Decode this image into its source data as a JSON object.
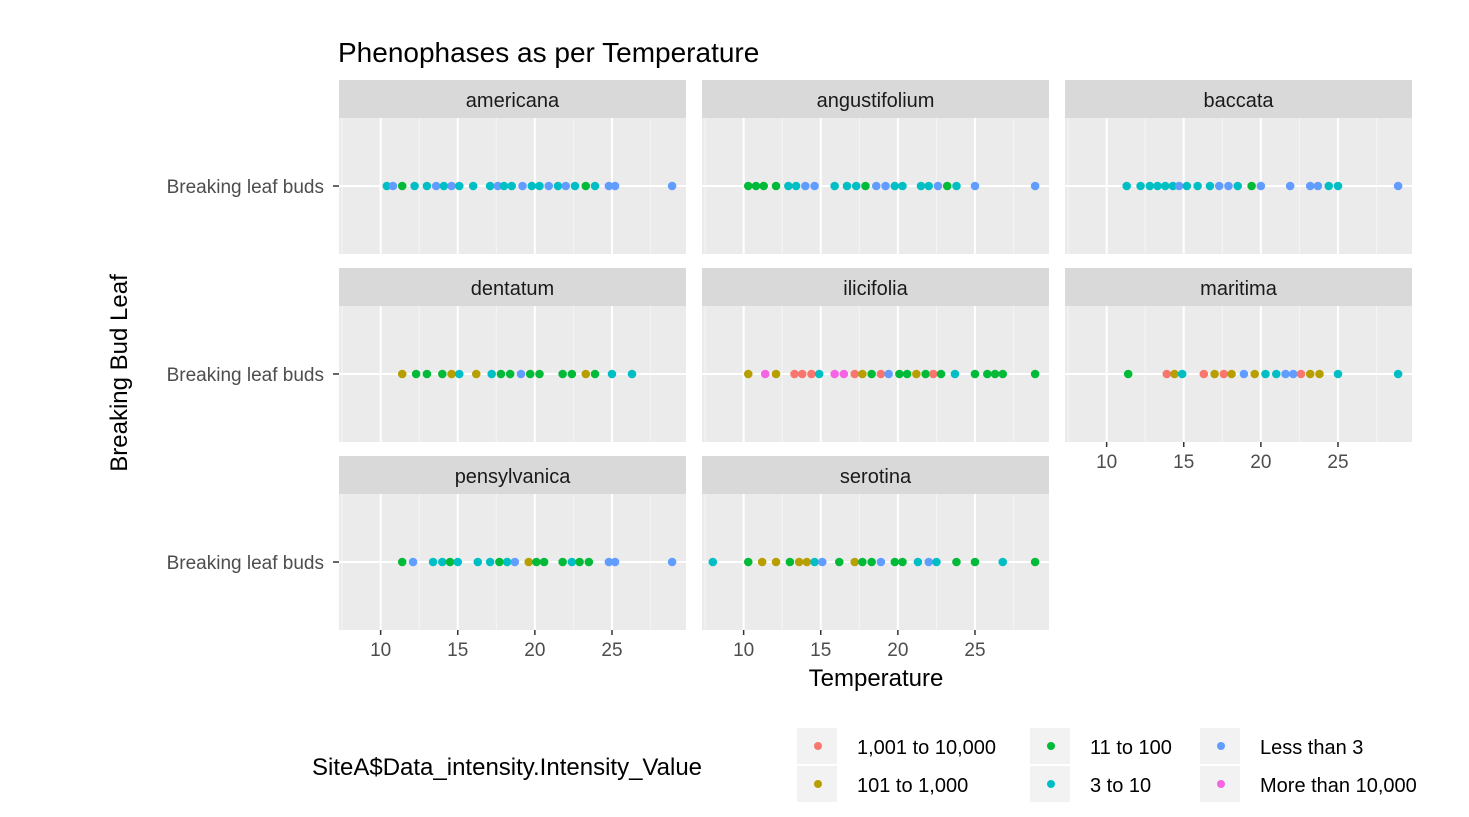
{
  "chart_data": {
    "type": "scatter",
    "title": "Phenophases as per Temperature",
    "xlabel": "Temperature",
    "ylabel": "Breaking Bud Leaf",
    "y_category": "Breaking leaf buds",
    "xlim": [
      7.3,
      29.8
    ],
    "x_ticks": [
      10,
      15,
      20,
      25
    ],
    "grid": true,
    "legend": {
      "title": "SiteA$Data_intensity.Intensity_Value",
      "position": "bottom",
      "entries": [
        {
          "label": "1,001 to 10,000",
          "color": "#F8766D"
        },
        {
          "label": "101 to 1,000",
          "color": "#B79F00"
        },
        {
          "label": "11 to 100",
          "color": "#00BA38"
        },
        {
          "label": "3 to 10",
          "color": "#00BFC4"
        },
        {
          "label": "Less than 3",
          "color": "#619CFF"
        },
        {
          "label": "More than 10,000",
          "color": "#F564E3"
        }
      ]
    },
    "panels": [
      {
        "name": "americana",
        "points": [
          {
            "x": 10.4,
            "c": "3 to 10"
          },
          {
            "x": 10.8,
            "c": "Less than 3"
          },
          {
            "x": 11.4,
            "c": "11 to 100"
          },
          {
            "x": 12.2,
            "c": "3 to 10"
          },
          {
            "x": 13.0,
            "c": "3 to 10"
          },
          {
            "x": 13.6,
            "c": "Less than 3"
          },
          {
            "x": 14.1,
            "c": "3 to 10"
          },
          {
            "x": 14.6,
            "c": "Less than 3"
          },
          {
            "x": 15.1,
            "c": "3 to 10"
          },
          {
            "x": 16.0,
            "c": "3 to 10"
          },
          {
            "x": 17.1,
            "c": "3 to 10"
          },
          {
            "x": 17.6,
            "c": "Less than 3"
          },
          {
            "x": 18.0,
            "c": "3 to 10"
          },
          {
            "x": 18.5,
            "c": "3 to 10"
          },
          {
            "x": 19.2,
            "c": "Less than 3"
          },
          {
            "x": 19.8,
            "c": "3 to 10"
          },
          {
            "x": 20.3,
            "c": "3 to 10"
          },
          {
            "x": 20.9,
            "c": "Less than 3"
          },
          {
            "x": 21.5,
            "c": "3 to 10"
          },
          {
            "x": 22.0,
            "c": "Less than 3"
          },
          {
            "x": 22.6,
            "c": "3 to 10"
          },
          {
            "x": 23.3,
            "c": "11 to 100"
          },
          {
            "x": 23.9,
            "c": "3 to 10"
          },
          {
            "x": 24.8,
            "c": "Less than 3"
          },
          {
            "x": 25.2,
            "c": "Less than 3"
          },
          {
            "x": 28.9,
            "c": "Less than 3"
          }
        ]
      },
      {
        "name": "angustifolium",
        "points": [
          {
            "x": 10.3,
            "c": "11 to 100"
          },
          {
            "x": 10.8,
            "c": "11 to 100"
          },
          {
            "x": 11.3,
            "c": "11 to 100"
          },
          {
            "x": 12.1,
            "c": "11 to 100"
          },
          {
            "x": 12.9,
            "c": "3 to 10"
          },
          {
            "x": 13.4,
            "c": "3 to 10"
          },
          {
            "x": 14.0,
            "c": "Less than 3"
          },
          {
            "x": 14.6,
            "c": "Less than 3"
          },
          {
            "x": 15.9,
            "c": "3 to 10"
          },
          {
            "x": 16.7,
            "c": "3 to 10"
          },
          {
            "x": 17.3,
            "c": "3 to 10"
          },
          {
            "x": 17.9,
            "c": "11 to 100"
          },
          {
            "x": 18.6,
            "c": "Less than 3"
          },
          {
            "x": 19.2,
            "c": "Less than 3"
          },
          {
            "x": 19.8,
            "c": "3 to 10"
          },
          {
            "x": 20.3,
            "c": "3 to 10"
          },
          {
            "x": 21.5,
            "c": "3 to 10"
          },
          {
            "x": 22.0,
            "c": "3 to 10"
          },
          {
            "x": 22.6,
            "c": "Less than 3"
          },
          {
            "x": 23.2,
            "c": "11 to 100"
          },
          {
            "x": 23.8,
            "c": "3 to 10"
          },
          {
            "x": 25.0,
            "c": "Less than 3"
          },
          {
            "x": 28.9,
            "c": "Less than 3"
          }
        ]
      },
      {
        "name": "baccata",
        "points": [
          {
            "x": 11.3,
            "c": "3 to 10"
          },
          {
            "x": 12.2,
            "c": "3 to 10"
          },
          {
            "x": 12.8,
            "c": "3 to 10"
          },
          {
            "x": 13.3,
            "c": "3 to 10"
          },
          {
            "x": 13.8,
            "c": "3 to 10"
          },
          {
            "x": 14.3,
            "c": "3 to 10"
          },
          {
            "x": 14.7,
            "c": "Less than 3"
          },
          {
            "x": 15.2,
            "c": "3 to 10"
          },
          {
            "x": 15.9,
            "c": "3 to 10"
          },
          {
            "x": 16.7,
            "c": "3 to 10"
          },
          {
            "x": 17.3,
            "c": "Less than 3"
          },
          {
            "x": 17.9,
            "c": "Less than 3"
          },
          {
            "x": 18.5,
            "c": "3 to 10"
          },
          {
            "x": 19.4,
            "c": "11 to 100"
          },
          {
            "x": 20.0,
            "c": "Less than 3"
          },
          {
            "x": 21.9,
            "c": "Less than 3"
          },
          {
            "x": 23.2,
            "c": "Less than 3"
          },
          {
            "x": 23.7,
            "c": "Less than 3"
          },
          {
            "x": 24.4,
            "c": "3 to 10"
          },
          {
            "x": 25.0,
            "c": "3 to 10"
          },
          {
            "x": 28.9,
            "c": "Less than 3"
          }
        ]
      },
      {
        "name": "dentatum",
        "points": [
          {
            "x": 11.4,
            "c": "101 to 1,000"
          },
          {
            "x": 12.3,
            "c": "11 to 100"
          },
          {
            "x": 13.0,
            "c": "11 to 100"
          },
          {
            "x": 14.0,
            "c": "11 to 100"
          },
          {
            "x": 14.6,
            "c": "101 to 1,000"
          },
          {
            "x": 15.1,
            "c": "3 to 10"
          },
          {
            "x": 16.2,
            "c": "101 to 1,000"
          },
          {
            "x": 17.2,
            "c": "3 to 10"
          },
          {
            "x": 17.8,
            "c": "11 to 100"
          },
          {
            "x": 18.4,
            "c": "11 to 100"
          },
          {
            "x": 19.1,
            "c": "Less than 3"
          },
          {
            "x": 19.7,
            "c": "11 to 100"
          },
          {
            "x": 20.3,
            "c": "11 to 100"
          },
          {
            "x": 21.8,
            "c": "11 to 100"
          },
          {
            "x": 22.4,
            "c": "11 to 100"
          },
          {
            "x": 23.3,
            "c": "101 to 1,000"
          },
          {
            "x": 23.9,
            "c": "11 to 100"
          },
          {
            "x": 25.0,
            "c": "3 to 10"
          },
          {
            "x": 26.3,
            "c": "3 to 10"
          }
        ]
      },
      {
        "name": "ilicifolia",
        "points": [
          {
            "x": 10.3,
            "c": "101 to 1,000"
          },
          {
            "x": 11.4,
            "c": "More than 10,000"
          },
          {
            "x": 12.1,
            "c": "101 to 1,000"
          },
          {
            "x": 13.3,
            "c": "1,001 to 10,000"
          },
          {
            "x": 13.8,
            "c": "1,001 to 10,000"
          },
          {
            "x": 14.4,
            "c": "1,001 to 10,000"
          },
          {
            "x": 14.9,
            "c": "3 to 10"
          },
          {
            "x": 15.9,
            "c": "More than 10,000"
          },
          {
            "x": 16.5,
            "c": "More than 10,000"
          },
          {
            "x": 17.2,
            "c": "1,001 to 10,000"
          },
          {
            "x": 17.7,
            "c": "101 to 1,000"
          },
          {
            "x": 18.3,
            "c": "11 to 100"
          },
          {
            "x": 18.9,
            "c": "1,001 to 10,000"
          },
          {
            "x": 19.4,
            "c": "Less than 3"
          },
          {
            "x": 20.1,
            "c": "11 to 100"
          },
          {
            "x": 20.6,
            "c": "11 to 100"
          },
          {
            "x": 21.2,
            "c": "101 to 1,000"
          },
          {
            "x": 21.8,
            "c": "11 to 100"
          },
          {
            "x": 22.3,
            "c": "1,001 to 10,000"
          },
          {
            "x": 22.8,
            "c": "11 to 100"
          },
          {
            "x": 23.7,
            "c": "3 to 10"
          },
          {
            "x": 25.0,
            "c": "11 to 100"
          },
          {
            "x": 25.8,
            "c": "11 to 100"
          },
          {
            "x": 26.3,
            "c": "11 to 100"
          },
          {
            "x": 26.8,
            "c": "11 to 100"
          },
          {
            "x": 28.9,
            "c": "11 to 100"
          }
        ]
      },
      {
        "name": "maritima",
        "points": [
          {
            "x": 11.4,
            "c": "11 to 100"
          },
          {
            "x": 13.9,
            "c": "1,001 to 10,000"
          },
          {
            "x": 14.4,
            "c": "101 to 1,000"
          },
          {
            "x": 14.9,
            "c": "3 to 10"
          },
          {
            "x": 16.3,
            "c": "1,001 to 10,000"
          },
          {
            "x": 17.0,
            "c": "101 to 1,000"
          },
          {
            "x": 17.6,
            "c": "1,001 to 10,000"
          },
          {
            "x": 18.1,
            "c": "101 to 1,000"
          },
          {
            "x": 18.9,
            "c": "Less than 3"
          },
          {
            "x": 19.6,
            "c": "101 to 1,000"
          },
          {
            "x": 20.3,
            "c": "3 to 10"
          },
          {
            "x": 21.0,
            "c": "3 to 10"
          },
          {
            "x": 21.6,
            "c": "Less than 3"
          },
          {
            "x": 22.1,
            "c": "Less than 3"
          },
          {
            "x": 22.6,
            "c": "1,001 to 10,000"
          },
          {
            "x": 23.2,
            "c": "101 to 1,000"
          },
          {
            "x": 23.8,
            "c": "101 to 1,000"
          },
          {
            "x": 25.0,
            "c": "3 to 10"
          },
          {
            "x": 28.9,
            "c": "3 to 10"
          }
        ]
      },
      {
        "name": "pensylvanica",
        "points": [
          {
            "x": 11.4,
            "c": "11 to 100"
          },
          {
            "x": 12.1,
            "c": "Less than 3"
          },
          {
            "x": 13.4,
            "c": "3 to 10"
          },
          {
            "x": 14.0,
            "c": "3 to 10"
          },
          {
            "x": 14.5,
            "c": "11 to 100"
          },
          {
            "x": 15.0,
            "c": "3 to 10"
          },
          {
            "x": 16.3,
            "c": "3 to 10"
          },
          {
            "x": 17.1,
            "c": "3 to 10"
          },
          {
            "x": 17.7,
            "c": "11 to 100"
          },
          {
            "x": 18.2,
            "c": "3 to 10"
          },
          {
            "x": 18.7,
            "c": "Less than 3"
          },
          {
            "x": 19.6,
            "c": "101 to 1,000"
          },
          {
            "x": 20.1,
            "c": "11 to 100"
          },
          {
            "x": 20.6,
            "c": "11 to 100"
          },
          {
            "x": 21.8,
            "c": "11 to 100"
          },
          {
            "x": 22.4,
            "c": "3 to 10"
          },
          {
            "x": 22.9,
            "c": "11 to 100"
          },
          {
            "x": 23.5,
            "c": "11 to 100"
          },
          {
            "x": 24.8,
            "c": "Less than 3"
          },
          {
            "x": 25.2,
            "c": "Less than 3"
          },
          {
            "x": 28.9,
            "c": "Less than 3"
          }
        ]
      },
      {
        "name": "serotina",
        "points": [
          {
            "x": 8.0,
            "c": "3 to 10"
          },
          {
            "x": 10.3,
            "c": "11 to 100"
          },
          {
            "x": 11.2,
            "c": "101 to 1,000"
          },
          {
            "x": 12.1,
            "c": "101 to 1,000"
          },
          {
            "x": 13.0,
            "c": "11 to 100"
          },
          {
            "x": 13.6,
            "c": "101 to 1,000"
          },
          {
            "x": 14.1,
            "c": "101 to 1,000"
          },
          {
            "x": 14.6,
            "c": "3 to 10"
          },
          {
            "x": 15.1,
            "c": "Less than 3"
          },
          {
            "x": 16.2,
            "c": "11 to 100"
          },
          {
            "x": 17.2,
            "c": "101 to 1,000"
          },
          {
            "x": 17.7,
            "c": "11 to 100"
          },
          {
            "x": 18.3,
            "c": "11 to 100"
          },
          {
            "x": 18.9,
            "c": "Less than 3"
          },
          {
            "x": 19.8,
            "c": "11 to 100"
          },
          {
            "x": 20.3,
            "c": "11 to 100"
          },
          {
            "x": 21.3,
            "c": "3 to 10"
          },
          {
            "x": 22.0,
            "c": "Less than 3"
          },
          {
            "x": 22.5,
            "c": "3 to 10"
          },
          {
            "x": 23.8,
            "c": "11 to 100"
          },
          {
            "x": 25.0,
            "c": "11 to 100"
          },
          {
            "x": 26.8,
            "c": "3 to 10"
          },
          {
            "x": 28.9,
            "c": "11 to 100"
          }
        ]
      }
    ]
  }
}
